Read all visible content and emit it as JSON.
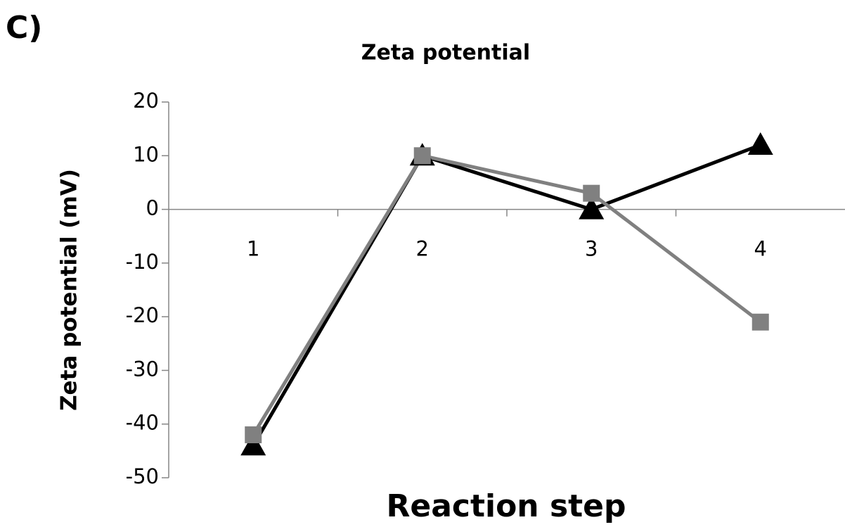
{
  "chart_data": {
    "type": "line",
    "panel_label": "C)",
    "title": "Zeta potential",
    "x_label": "Reaction step",
    "y_label": "Zeta potential (mV)",
    "categories": [
      "1",
      "2",
      "3",
      "4"
    ],
    "series": [
      {
        "color": "#000000",
        "marker": "triangle",
        "values": [
          -44,
          10,
          0,
          12
        ]
      },
      {
        "color": "#808080",
        "marker": "square",
        "values": [
          -42,
          10,
          3,
          -21
        ]
      }
    ],
    "ylim": [
      -50,
      20
    ],
    "yticks": [
      -50,
      -40,
      -30,
      -20,
      -10,
      0,
      10,
      20
    ]
  }
}
